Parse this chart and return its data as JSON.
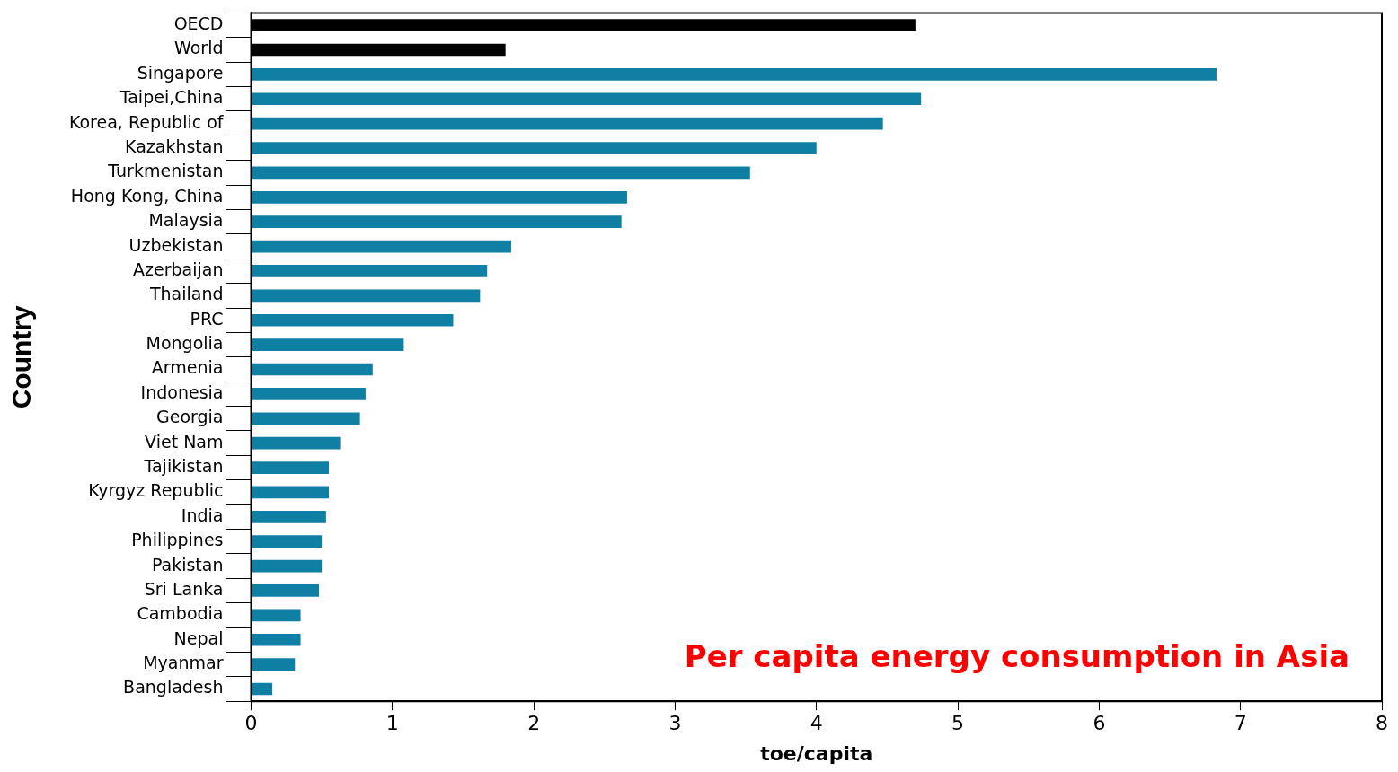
{
  "chart_data": {
    "type": "bar",
    "orientation": "horizontal",
    "xlabel": "toe/capita",
    "ylabel": "Country",
    "annotations": [
      "Per capita energy consumption in Asia"
    ],
    "categories": [
      "OECD",
      "World",
      "Singapore",
      "Taipei,China",
      "Korea, Republic of",
      "Kazakhstan",
      "Turkmenistan",
      "Hong Kong, China",
      "Malaysia",
      "Uzbekistan",
      "Azerbaijan",
      "Thailand",
      "PRC",
      "Mongolia",
      "Armenia",
      "Indonesia",
      "Georgia",
      "Viet Nam",
      "Tajikistan",
      "Kyrgyz Republic",
      "India",
      "Philippines",
      "Pakistan",
      "Sri Lanka",
      "Cambodia",
      "Nepal",
      "Myanmar",
      "Bangladesh"
    ],
    "values": [
      4.7,
      1.8,
      6.83,
      4.74,
      4.47,
      4.0,
      3.53,
      2.66,
      2.62,
      1.84,
      1.67,
      1.62,
      1.43,
      1.08,
      0.86,
      0.81,
      0.77,
      0.63,
      0.55,
      0.55,
      0.53,
      0.5,
      0.5,
      0.48,
      0.35,
      0.35,
      0.31,
      0.15
    ],
    "colors": [
      "#000000",
      "#000000",
      "#0f7fa3",
      "#0f7fa3",
      "#0f7fa3",
      "#0f7fa3",
      "#0f7fa3",
      "#0f7fa3",
      "#0f7fa3",
      "#0f7fa3",
      "#0f7fa3",
      "#0f7fa3",
      "#0f7fa3",
      "#0f7fa3",
      "#0f7fa3",
      "#0f7fa3",
      "#0f7fa3",
      "#0f7fa3",
      "#0f7fa3",
      "#0f7fa3",
      "#0f7fa3",
      "#0f7fa3",
      "#0f7fa3",
      "#0f7fa3",
      "#0f7fa3",
      "#0f7fa3",
      "#0f7fa3",
      "#0f7fa3"
    ],
    "xlim": [
      0,
      8
    ],
    "xticks": [
      0,
      1,
      2,
      3,
      4,
      5,
      6,
      7,
      8
    ],
    "grid": false,
    "legend": false
  }
}
